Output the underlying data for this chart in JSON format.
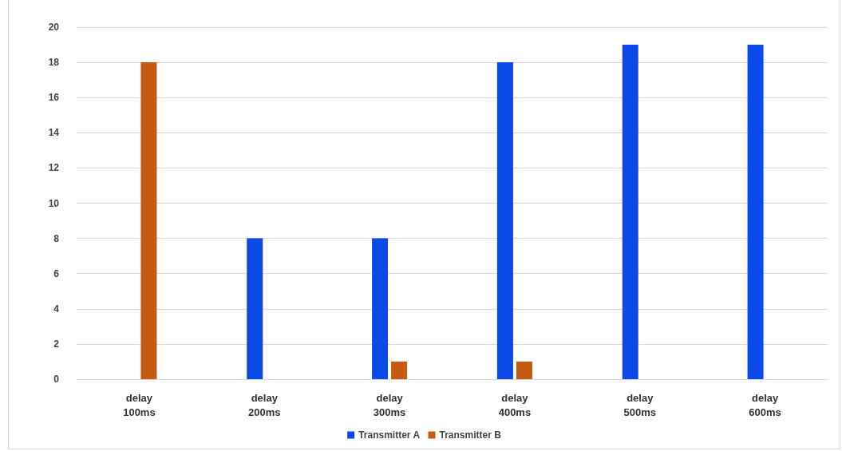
{
  "chart_data": {
    "type": "bar",
    "categories": [
      "delay\n100ms",
      "delay\n200ms",
      "delay\n300ms",
      "delay\n400ms",
      "delay\n500ms",
      "delay\n600ms"
    ],
    "series": [
      {
        "name": "Transmitter A",
        "color": "#0b49e8",
        "values": [
          0,
          8,
          8,
          18,
          19,
          19
        ]
      },
      {
        "name": "Transmitter B",
        "color": "#c55a11",
        "values": [
          18,
          0,
          1,
          1,
          0,
          0
        ]
      }
    ],
    "ylim": [
      0,
      20
    ],
    "yticks": [
      0,
      2,
      4,
      6,
      8,
      10,
      12,
      14,
      16,
      18,
      20
    ],
    "grid": "y",
    "legend": "bottom"
  }
}
